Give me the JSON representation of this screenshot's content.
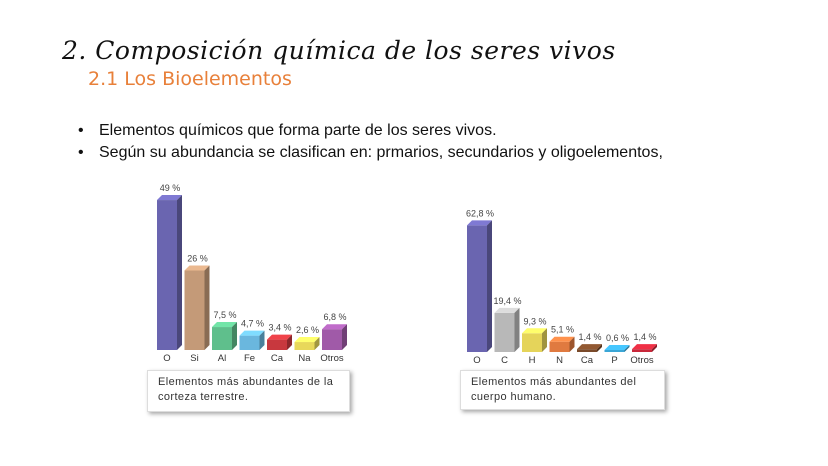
{
  "slide": {
    "title": "2. Composición química de los seres vivos",
    "subtitle": "2.1 Los Bioelementos",
    "bullets": [
      "Elementos químicos que forma parte de los seres vivos.",
      "Según su abundancia se clasifican en: prmarios, secundarios y oligoelementos,"
    ]
  },
  "chart_data": [
    {
      "type": "bar",
      "title": "Elementos más abundantes de la corteza terrestre.",
      "categories": [
        "O",
        "Si",
        "Al",
        "Fe",
        "Ca",
        "Na",
        "Otros"
      ],
      "values": [
        49,
        26,
        7.5,
        4.7,
        3.4,
        2.6,
        6.8
      ],
      "labels": [
        "49 %",
        "26 %",
        "7,5 %",
        "4,7 %",
        "3,4 %",
        "2,6 %",
        "6,8 %"
      ],
      "colors": [
        "#6a65b0",
        "#c49a78",
        "#5fbf8c",
        "#6ab7de",
        "#c8383e",
        "#e8d85a",
        "#a05aa8"
      ],
      "ylim": [
        0,
        50
      ],
      "grid": false
    },
    {
      "type": "bar",
      "title": "Elementos más abundantes del cuerpo humano.",
      "categories": [
        "O",
        "C",
        "H",
        "N",
        "Ca",
        "P",
        "Otros"
      ],
      "values": [
        62.8,
        19.4,
        9.3,
        5.1,
        1.4,
        0.6,
        1.4
      ],
      "labels": [
        "62,8 %",
        "19,4 %",
        "9,3 %",
        "5,1 %",
        "1,4 %",
        "0,6 %",
        "1,4 %"
      ],
      "colors": [
        "#6a65b0",
        "#b8b8b8",
        "#e5d45a",
        "#e07a40",
        "#7a4a2a",
        "#3aa6d6",
        "#c8283a"
      ],
      "ylim": [
        0,
        63
      ],
      "grid": false
    }
  ]
}
